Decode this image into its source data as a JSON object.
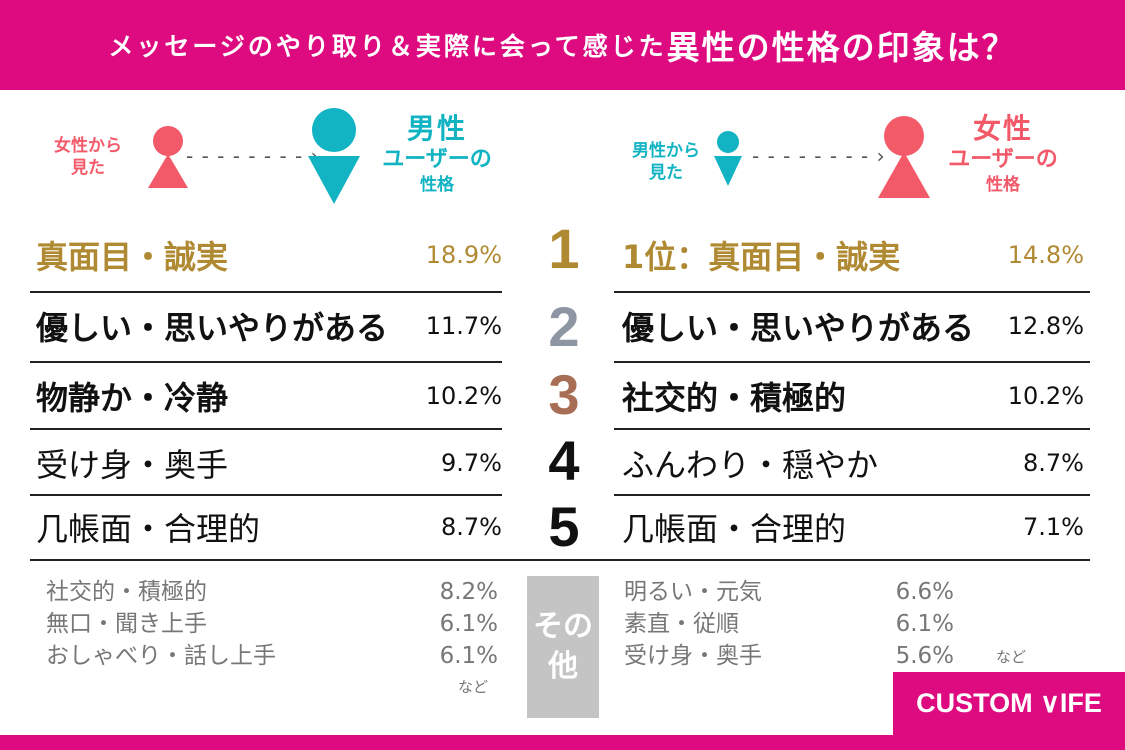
{
  "header": {
    "title_part1": "メッセージのやり取り＆実際に会って感じた",
    "title_part2": "異性の性格の印象は？"
  },
  "left": {
    "viewer": [
      "女性から",
      "見た"
    ],
    "target": [
      "男性",
      "ユーザーの",
      "性格"
    ],
    "items": [
      {
        "name": "真面目・誠実",
        "pct": "18.9%"
      },
      {
        "name": "優しい・思いやりがある",
        "pct": "11.7%"
      },
      {
        "name": "物静か・冷静",
        "pct": "10.2%"
      },
      {
        "name": "受け身・奥手",
        "pct": "9.7%"
      },
      {
        "name": "几帳面・合理的",
        "pct": "8.7%"
      }
    ],
    "others": [
      {
        "name": "社交的・積極的",
        "pct": "8.2%"
      },
      {
        "name": "無口・聞き上手",
        "pct": "6.1%"
      },
      {
        "name": "おしゃべり・話し上手",
        "pct": "6.1%"
      }
    ],
    "etc": "など"
  },
  "right": {
    "viewer": [
      "男性から",
      "見た"
    ],
    "target": [
      "女性",
      "ユーザーの",
      "性格"
    ],
    "items": [
      {
        "name": "1位：真面目・誠実",
        "pct": "14.8%"
      },
      {
        "name": "優しい・思いやりがある",
        "pct": "12.8%"
      },
      {
        "name": "社交的・積極的",
        "pct": "10.2%"
      },
      {
        "name": "ふんわり・穏やか",
        "pct": "8.7%"
      },
      {
        "name": "几帳面・合理的",
        "pct": "7.1%"
      }
    ],
    "others": [
      {
        "name": "明るい・元気",
        "pct": "6.6%"
      },
      {
        "name": "素直・従順",
        "pct": "6.1%"
      },
      {
        "name": "受け身・奥手",
        "pct": "5.6%"
      }
    ],
    "etc": "など"
  },
  "ranks": [
    "1",
    "2",
    "3",
    "4",
    "5"
  ],
  "other_label": [
    "その",
    "他"
  ],
  "logo": "CUSTOM ∨IFE",
  "colors": {
    "brand": "#dd0b7f",
    "female": "#f25a6a",
    "male": "#12b3c3",
    "rank1": "#b08a33",
    "rank2": "#8e96a3",
    "rank3": "#a86e55",
    "rank45": "#111111"
  }
}
